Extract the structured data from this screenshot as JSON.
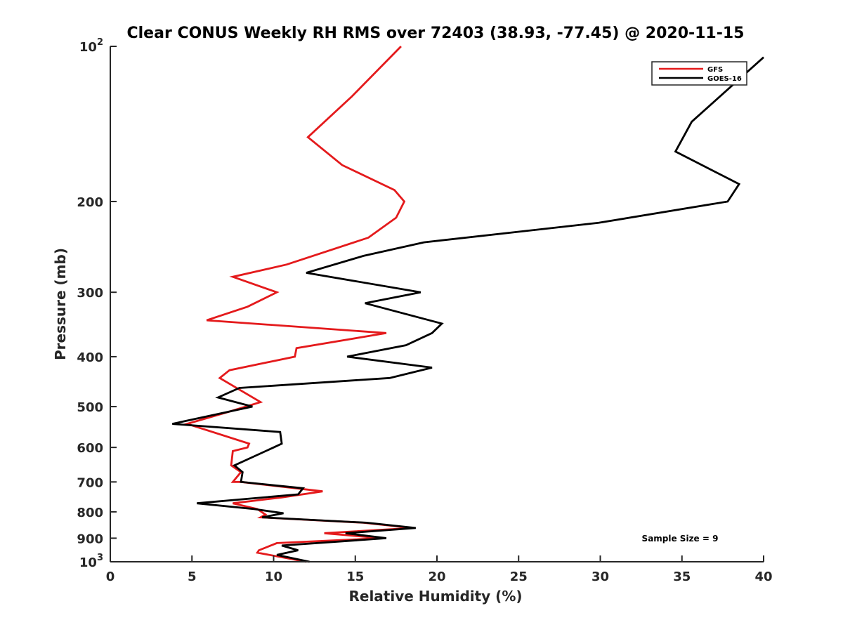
{
  "chart_data": {
    "type": "line",
    "title": "Clear CONUS Weekly RH RMS over 72403 (38.93, -77.45) @ 2020-11-15",
    "xlabel": "Relative Humidity (%)",
    "ylabel": "Pressure (mb)",
    "xlim": [
      0,
      40
    ],
    "ylim": [
      100,
      1000
    ],
    "y_scale": "log",
    "y_reversed": true,
    "x_ticks": [
      "0",
      "5",
      "10",
      "15",
      "20",
      "25",
      "30",
      "35",
      "40"
    ],
    "x_tick_values": [
      0,
      5,
      10,
      15,
      20,
      25,
      30,
      35,
      40
    ],
    "y_ticks": [
      {
        "value": 100,
        "label": "10",
        "sup": "2"
      },
      {
        "value": 200,
        "label": "200",
        "sup": ""
      },
      {
        "value": 300,
        "label": "300",
        "sup": ""
      },
      {
        "value": 400,
        "label": "400",
        "sup": ""
      },
      {
        "value": 500,
        "label": "500",
        "sup": ""
      },
      {
        "value": 600,
        "label": "600",
        "sup": ""
      },
      {
        "value": 700,
        "label": "700",
        "sup": ""
      },
      {
        "value": 800,
        "label": "800",
        "sup": ""
      },
      {
        "value": 900,
        "label": "900",
        "sup": ""
      },
      {
        "value": 1000,
        "label": "10",
        "sup": "3"
      }
    ],
    "legend_position": "top-right",
    "grid": false,
    "annotation": "Sample Size = 9",
    "series": [
      {
        "name": "GFS",
        "color": "#e41a1c",
        "points": [
          [
            17.8,
            100
          ],
          [
            14.8,
            125
          ],
          [
            12.1,
            150
          ],
          [
            14.2,
            170
          ],
          [
            17.4,
            190
          ],
          [
            18.0,
            200
          ],
          [
            17.5,
            215
          ],
          [
            15.8,
            235
          ],
          [
            10.8,
            265
          ],
          [
            7.5,
            280
          ],
          [
            10.2,
            300
          ],
          [
            8.4,
            320
          ],
          [
            5.9,
            340
          ],
          [
            16.9,
            360
          ],
          [
            11.4,
            385
          ],
          [
            11.3,
            400
          ],
          [
            7.3,
            425
          ],
          [
            6.7,
            440
          ],
          [
            9.2,
            490
          ],
          [
            7.4,
            510
          ],
          [
            4.7,
            540
          ],
          [
            8.5,
            590
          ],
          [
            8.4,
            600
          ],
          [
            7.5,
            610
          ],
          [
            7.4,
            650
          ],
          [
            8.0,
            670
          ],
          [
            7.5,
            700
          ],
          [
            8.0,
            700
          ],
          [
            13.0,
            730
          ],
          [
            10.5,
            750
          ],
          [
            7.5,
            770
          ],
          [
            9.0,
            790
          ],
          [
            9.5,
            810
          ],
          [
            9.2,
            820
          ],
          [
            15.5,
            840
          ],
          [
            18.5,
            860
          ],
          [
            13.1,
            880
          ],
          [
            16.6,
            900
          ],
          [
            10.2,
            920
          ],
          [
            9.1,
            950
          ],
          [
            9.0,
            960
          ],
          [
            12.0,
            1000
          ]
        ]
      },
      {
        "name": "GOES-16",
        "color": "#000000",
        "points": [
          [
            40.0,
            105
          ],
          [
            35.6,
            140
          ],
          [
            34.6,
            160
          ],
          [
            38.5,
            185
          ],
          [
            37.8,
            200
          ],
          [
            29.9,
            220
          ],
          [
            19.2,
            240
          ],
          [
            15.5,
            255
          ],
          [
            12.0,
            275
          ],
          [
            19.0,
            300
          ],
          [
            15.6,
            315
          ],
          [
            20.3,
            345
          ],
          [
            19.7,
            360
          ],
          [
            18.1,
            380
          ],
          [
            14.5,
            400
          ],
          [
            19.7,
            420
          ],
          [
            17.1,
            440
          ],
          [
            7.9,
            460
          ],
          [
            6.6,
            480
          ],
          [
            8.7,
            500
          ],
          [
            3.8,
            540
          ],
          [
            10.4,
            560
          ],
          [
            10.5,
            590
          ],
          [
            10.0,
            600
          ],
          [
            7.6,
            650
          ],
          [
            8.1,
            670
          ],
          [
            8.0,
            700
          ],
          [
            11.8,
            720
          ],
          [
            11.5,
            740
          ],
          [
            5.3,
            770
          ],
          [
            8.8,
            790
          ],
          [
            10.6,
            805
          ],
          [
            9.3,
            820
          ],
          [
            15.7,
            840
          ],
          [
            18.7,
            860
          ],
          [
            14.4,
            880
          ],
          [
            16.9,
            900
          ],
          [
            10.5,
            930
          ],
          [
            11.5,
            950
          ],
          [
            10.2,
            970
          ],
          [
            12.2,
            1000
          ]
        ]
      }
    ]
  }
}
